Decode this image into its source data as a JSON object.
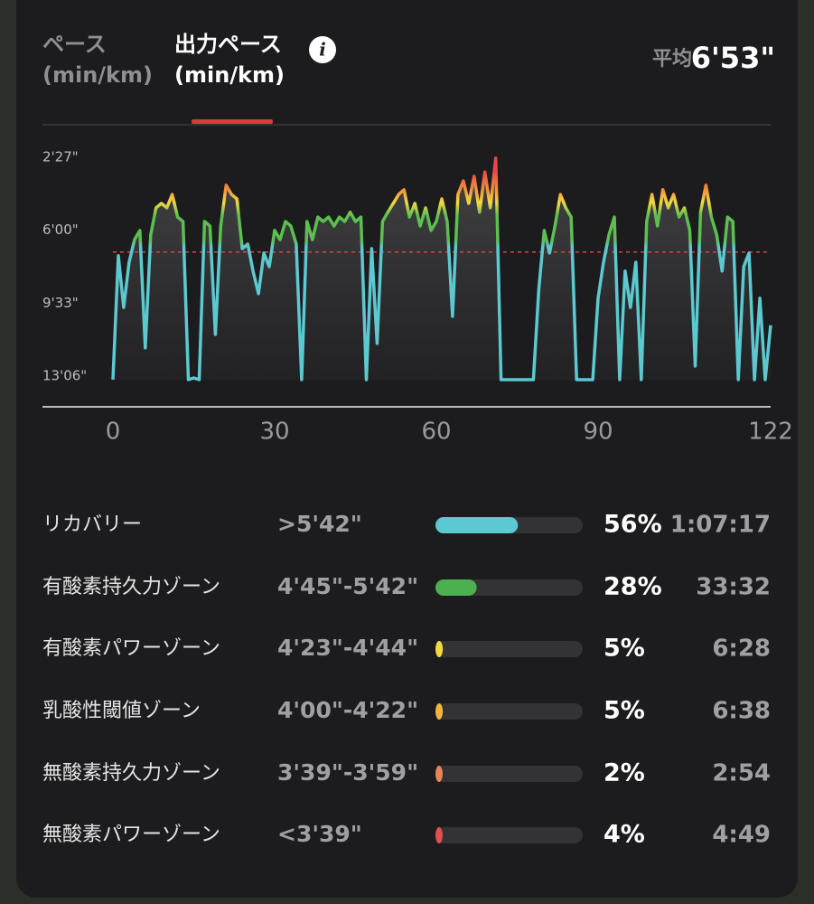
{
  "header": {
    "tabs": [
      {
        "title": "ペース",
        "unit": "(min/km)"
      },
      {
        "title": "出力ペース",
        "unit": "(min/km)"
      }
    ],
    "average_label": "平均",
    "average": "6'53\""
  },
  "chart_data": {
    "type": "line",
    "x": [
      0,
      1,
      2,
      3,
      4,
      5,
      6,
      7,
      8,
      9,
      10,
      11,
      12,
      13,
      14,
      15,
      16,
      17,
      18,
      19,
      20,
      21,
      22,
      23,
      24,
      25,
      26,
      27,
      28,
      29,
      30,
      31,
      32,
      33,
      34,
      35,
      36,
      37,
      38,
      39,
      40,
      41,
      42,
      43,
      44,
      45,
      46,
      47,
      48,
      49,
      50,
      51,
      52,
      53,
      54,
      55,
      56,
      57,
      58,
      59,
      60,
      61,
      62,
      63,
      64,
      65,
      66,
      67,
      68,
      69,
      70,
      71,
      72,
      73,
      74,
      75,
      76,
      77,
      78,
      79,
      80,
      81,
      82,
      83,
      84,
      85,
      86,
      87,
      88,
      89,
      90,
      91,
      92,
      93,
      94,
      95,
      96,
      97,
      98,
      99,
      100,
      101,
      102,
      103,
      104,
      105,
      106,
      107,
      108,
      109,
      110,
      111,
      112,
      113,
      114,
      115,
      116,
      117,
      118,
      119,
      120,
      121,
      122
    ],
    "values": [
      786,
      424,
      575,
      443,
      377,
      350,
      693,
      363,
      284,
      271,
      284,
      245,
      311,
      324,
      786,
      781,
      786,
      324,
      337,
      654,
      337,
      218,
      245,
      258,
      403,
      390,
      469,
      535,
      416,
      456,
      350,
      377,
      324,
      337,
      390,
      786,
      324,
      377,
      311,
      324,
      311,
      337,
      311,
      324,
      297,
      324,
      311,
      786,
      403,
      680,
      324,
      297,
      271,
      245,
      231,
      311,
      271,
      337,
      284,
      350,
      324,
      258,
      324,
      601,
      245,
      205,
      271,
      192,
      297,
      179,
      284,
      139,
      786,
      786,
      786,
      786,
      786,
      786,
      786,
      522,
      350,
      416,
      337,
      245,
      284,
      311,
      786,
      786,
      786,
      786,
      548,
      443,
      363,
      311,
      786,
      469,
      575,
      443,
      786,
      324,
      245,
      337,
      231,
      284,
      245,
      311,
      284,
      350,
      746,
      297,
      218,
      311,
      363,
      469,
      311,
      324,
      786,
      456,
      416,
      786,
      548,
      786,
      627
    ],
    "color": "#5cc8d0",
    "xlim": [
      0,
      122
    ],
    "xticks": [
      0,
      30,
      60,
      90,
      122
    ],
    "ylim": [
      147,
      786
    ],
    "yreverse": true,
    "yticks": [
      {
        "value": 147,
        "label": "2'27\""
      },
      {
        "value": 360,
        "label": "6'00\""
      },
      {
        "value": 573,
        "label": "9'33\""
      },
      {
        "value": 786,
        "label": "13'06\""
      }
    ],
    "average_value": 413,
    "average_color": "#e04040"
  },
  "zones": [
    {
      "name": "リカバリー",
      "range": ">5'42\"",
      "percent": 56,
      "percent_label": "56%",
      "time": "1:07:17",
      "color": "#5cc8d0"
    },
    {
      "name": "有酸素持久力ゾーン",
      "range": "4'45\"-5'42\"",
      "percent": 28,
      "percent_label": "28%",
      "time": "33:32",
      "color": "#4caf50"
    },
    {
      "name": "有酸素パワーゾーン",
      "range": "4'23\"-4'44\"",
      "percent": 5,
      "percent_label": "5%",
      "time": "6:28",
      "color": "#f3d93f"
    },
    {
      "name": "乳酸性閾値ゾーン",
      "range": "4'00\"-4'22\"",
      "percent": 5,
      "percent_label": "5%",
      "time": "6:38",
      "color": "#f0b53c"
    },
    {
      "name": "無酸素持久力ゾーン",
      "range": "3'39\"-3'59\"",
      "percent": 2,
      "percent_label": "2%",
      "time": "2:54",
      "color": "#e8845a"
    },
    {
      "name": "無酸素パワーゾーン",
      "range": "<3'39\"",
      "percent": 4,
      "percent_label": "4%",
      "time": "4:49",
      "color": "#e05050"
    }
  ]
}
